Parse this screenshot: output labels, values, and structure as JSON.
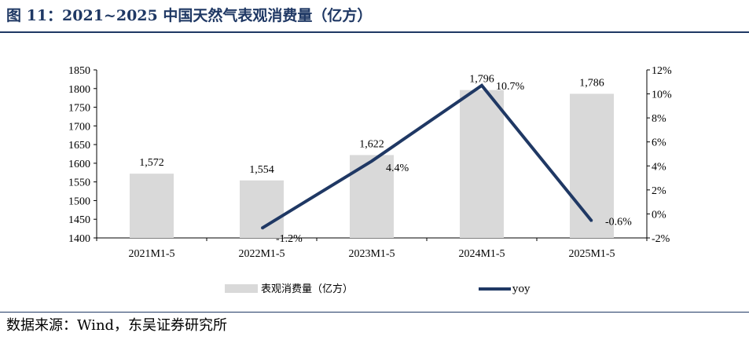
{
  "title": "图 11：2021~2025 中国天然气表观消费量（亿方）",
  "source": "数据来源：Wind，东吴证券研究所",
  "chart_data": {
    "type": "bar+line",
    "categories": [
      "2021M1-5",
      "2022M1-5",
      "2023M1-5",
      "2024M1-5",
      "2025M1-5"
    ],
    "series": [
      {
        "name": "表观消费量（亿方）",
        "type": "bar",
        "axis": "left",
        "values": [
          1572,
          1554,
          1622,
          1796,
          1786
        ],
        "labels": [
          "1,572",
          "1,554",
          "1,622",
          "1,796",
          "1,786"
        ],
        "color": "#d9d9d9"
      },
      {
        "name": "yoy",
        "type": "line",
        "axis": "right",
        "values": [
          null,
          -1.2,
          4.4,
          10.7,
          -0.6
        ],
        "labels": [
          "",
          "-1.2%",
          "4.4%",
          "10.7%",
          "-0.6%"
        ],
        "color": "#1f3864"
      }
    ],
    "y_left": {
      "lim": [
        1400,
        1850
      ],
      "ticks": [
        "1400",
        "1450",
        "1500",
        "1550",
        "1600",
        "1650",
        "1700",
        "1750",
        "1800",
        "1850"
      ]
    },
    "y_right": {
      "lim": [
        -2,
        12
      ],
      "ticks": [
        "-2%",
        "0%",
        "2%",
        "4%",
        "6%",
        "8%",
        "10%",
        "12%"
      ]
    },
    "grid": false,
    "legend": "bottom"
  }
}
